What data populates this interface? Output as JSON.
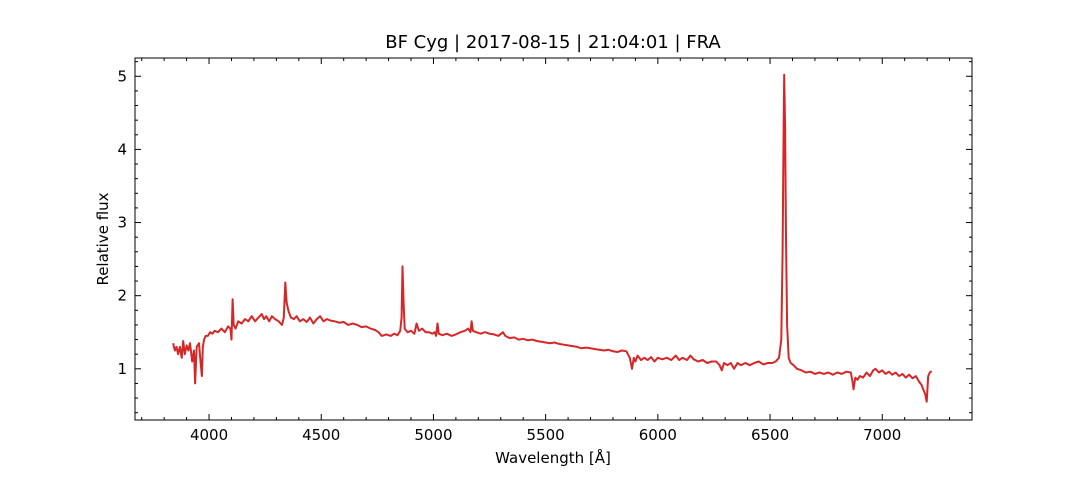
{
  "chart_data": {
    "type": "line",
    "title": "BF Cyg | 2017-08-15 | 21:04:01 | FRA",
    "xlabel": "Wavelength [Å]",
    "ylabel": "Relative flux",
    "xlim": [
      3670,
      7400
    ],
    "ylim": [
      0.3,
      5.25
    ],
    "x_ticks": [
      4000,
      4500,
      5000,
      5500,
      6000,
      6500,
      7000
    ],
    "y_ticks": [
      1,
      2,
      3,
      4,
      5
    ],
    "x_tick_labels": [
      "4000",
      "4500",
      "5000",
      "5500",
      "6000",
      "6500",
      "7000"
    ],
    "y_tick_labels": [
      "1",
      "2",
      "3",
      "4",
      "5"
    ],
    "grid": false,
    "legend": "none",
    "series": [
      {
        "color": "#d62728",
        "points": [
          [
            3840,
            1.35
          ],
          [
            3848,
            1.25
          ],
          [
            3855,
            1.3
          ],
          [
            3862,
            1.2
          ],
          [
            3870,
            1.3
          ],
          [
            3878,
            1.15
          ],
          [
            3885,
            1.38
          ],
          [
            3892,
            1.2
          ],
          [
            3900,
            1.32
          ],
          [
            3908,
            1.25
          ],
          [
            3915,
            1.35
          ],
          [
            3925,
            1.1
          ],
          [
            3933,
            1.25
          ],
          [
            3938,
            0.8
          ],
          [
            3945,
            1.3
          ],
          [
            3955,
            1.35
          ],
          [
            3962,
            1.1
          ],
          [
            3968,
            0.9
          ],
          [
            3972,
            1.3
          ],
          [
            3978,
            1.4
          ],
          [
            3985,
            1.45
          ],
          [
            3995,
            1.45
          ],
          [
            4005,
            1.5
          ],
          [
            4015,
            1.48
          ],
          [
            4025,
            1.52
          ],
          [
            4040,
            1.5
          ],
          [
            4055,
            1.55
          ],
          [
            4070,
            1.5
          ],
          [
            4085,
            1.58
          ],
          [
            4095,
            1.55
          ],
          [
            4100,
            1.4
          ],
          [
            4105,
            1.95
          ],
          [
            4110,
            1.6
          ],
          [
            4118,
            1.55
          ],
          [
            4130,
            1.65
          ],
          [
            4145,
            1.62
          ],
          [
            4160,
            1.68
          ],
          [
            4175,
            1.65
          ],
          [
            4190,
            1.72
          ],
          [
            4205,
            1.65
          ],
          [
            4220,
            1.7
          ],
          [
            4235,
            1.75
          ],
          [
            4245,
            1.68
          ],
          [
            4255,
            1.72
          ],
          [
            4268,
            1.65
          ],
          [
            4280,
            1.72
          ],
          [
            4295,
            1.68
          ],
          [
            4310,
            1.65
          ],
          [
            4325,
            1.6
          ],
          [
            4333,
            1.7
          ],
          [
            4340,
            2.18
          ],
          [
            4346,
            1.9
          ],
          [
            4355,
            1.78
          ],
          [
            4365,
            1.7
          ],
          [
            4378,
            1.68
          ],
          [
            4390,
            1.72
          ],
          [
            4405,
            1.65
          ],
          [
            4420,
            1.68
          ],
          [
            4435,
            1.64
          ],
          [
            4450,
            1.7
          ],
          [
            4465,
            1.62
          ],
          [
            4480,
            1.68
          ],
          [
            4495,
            1.72
          ],
          [
            4510,
            1.65
          ],
          [
            4525,
            1.68
          ],
          [
            4540,
            1.66
          ],
          [
            4560,
            1.65
          ],
          [
            4580,
            1.63
          ],
          [
            4600,
            1.64
          ],
          [
            4620,
            1.6
          ],
          [
            4640,
            1.62
          ],
          [
            4660,
            1.6
          ],
          [
            4680,
            1.57
          ],
          [
            4700,
            1.58
          ],
          [
            4720,
            1.55
          ],
          [
            4740,
            1.53
          ],
          [
            4755,
            1.5
          ],
          [
            4770,
            1.45
          ],
          [
            4790,
            1.47
          ],
          [
            4810,
            1.45
          ],
          [
            4825,
            1.48
          ],
          [
            4840,
            1.46
          ],
          [
            4852,
            1.52
          ],
          [
            4858,
            1.7
          ],
          [
            4862,
            2.4
          ],
          [
            4867,
            1.9
          ],
          [
            4872,
            1.55
          ],
          [
            4885,
            1.5
          ],
          [
            4900,
            1.52
          ],
          [
            4915,
            1.48
          ],
          [
            4925,
            1.62
          ],
          [
            4935,
            1.52
          ],
          [
            4950,
            1.55
          ],
          [
            4965,
            1.5
          ],
          [
            4980,
            1.5
          ],
          [
            4995,
            1.48
          ],
          [
            5005,
            1.5
          ],
          [
            5012,
            1.45
          ],
          [
            5018,
            1.62
          ],
          [
            5024,
            1.48
          ],
          [
            5040,
            1.46
          ],
          [
            5060,
            1.48
          ],
          [
            5080,
            1.45
          ],
          [
            5100,
            1.47
          ],
          [
            5120,
            1.5
          ],
          [
            5140,
            1.52
          ],
          [
            5155,
            1.55
          ],
          [
            5165,
            1.5
          ],
          [
            5170,
            1.65
          ],
          [
            5176,
            1.52
          ],
          [
            5190,
            1.5
          ],
          [
            5210,
            1.48
          ],
          [
            5230,
            1.5
          ],
          [
            5250,
            1.48
          ],
          [
            5270,
            1.47
          ],
          [
            5290,
            1.45
          ],
          [
            5310,
            1.5
          ],
          [
            5320,
            1.45
          ],
          [
            5340,
            1.42
          ],
          [
            5360,
            1.43
          ],
          [
            5380,
            1.4
          ],
          [
            5400,
            1.41
          ],
          [
            5420,
            1.39
          ],
          [
            5440,
            1.4
          ],
          [
            5460,
            1.38
          ],
          [
            5480,
            1.37
          ],
          [
            5500,
            1.36
          ],
          [
            5520,
            1.35
          ],
          [
            5540,
            1.36
          ],
          [
            5560,
            1.34
          ],
          [
            5580,
            1.33
          ],
          [
            5600,
            1.32
          ],
          [
            5620,
            1.31
          ],
          [
            5640,
            1.3
          ],
          [
            5660,
            1.28
          ],
          [
            5680,
            1.29
          ],
          [
            5700,
            1.28
          ],
          [
            5720,
            1.27
          ],
          [
            5740,
            1.26
          ],
          [
            5760,
            1.25
          ],
          [
            5780,
            1.26
          ],
          [
            5800,
            1.24
          ],
          [
            5820,
            1.23
          ],
          [
            5840,
            1.25
          ],
          [
            5860,
            1.24
          ],
          [
            5875,
            1.15
          ],
          [
            5885,
            1.0
          ],
          [
            5893,
            1.15
          ],
          [
            5900,
            1.1
          ],
          [
            5910,
            1.18
          ],
          [
            5925,
            1.12
          ],
          [
            5940,
            1.15
          ],
          [
            5955,
            1.12
          ],
          [
            5970,
            1.16
          ],
          [
            5985,
            1.1
          ],
          [
            6000,
            1.15
          ],
          [
            6020,
            1.13
          ],
          [
            6040,
            1.15
          ],
          [
            6060,
            1.12
          ],
          [
            6080,
            1.18
          ],
          [
            6095,
            1.12
          ],
          [
            6110,
            1.15
          ],
          [
            6130,
            1.12
          ],
          [
            6145,
            1.18
          ],
          [
            6160,
            1.13
          ],
          [
            6180,
            1.1
          ],
          [
            6200,
            1.12
          ],
          [
            6220,
            1.08
          ],
          [
            6240,
            1.1
          ],
          [
            6260,
            1.1
          ],
          [
            6275,
            1.05
          ],
          [
            6285,
            0.98
          ],
          [
            6295,
            1.08
          ],
          [
            6310,
            1.05
          ],
          [
            6325,
            1.08
          ],
          [
            6340,
            1.0
          ],
          [
            6355,
            1.08
          ],
          [
            6370,
            1.05
          ],
          [
            6390,
            1.08
          ],
          [
            6410,
            1.05
          ],
          [
            6430,
            1.08
          ],
          [
            6450,
            1.1
          ],
          [
            6470,
            1.06
          ],
          [
            6490,
            1.08
          ],
          [
            6510,
            1.08
          ],
          [
            6525,
            1.1
          ],
          [
            6540,
            1.15
          ],
          [
            6550,
            1.4
          ],
          [
            6556,
            2.6
          ],
          [
            6560,
            4.1
          ],
          [
            6563,
            5.02
          ],
          [
            6567,
            4.3
          ],
          [
            6571,
            2.8
          ],
          [
            6576,
            1.6
          ],
          [
            6583,
            1.15
          ],
          [
            6592,
            1.08
          ],
          [
            6605,
            1.05
          ],
          [
            6620,
            1.0
          ],
          [
            6640,
            0.98
          ],
          [
            6660,
            0.95
          ],
          [
            6680,
            0.96
          ],
          [
            6700,
            0.93
          ],
          [
            6720,
            0.95
          ],
          [
            6740,
            0.93
          ],
          [
            6760,
            0.95
          ],
          [
            6780,
            0.92
          ],
          [
            6800,
            0.95
          ],
          [
            6820,
            0.93
          ],
          [
            6840,
            0.96
          ],
          [
            6860,
            0.95
          ],
          [
            6868,
            0.82
          ],
          [
            6872,
            0.72
          ],
          [
            6880,
            0.88
          ],
          [
            6890,
            0.85
          ],
          [
            6900,
            0.9
          ],
          [
            6915,
            0.88
          ],
          [
            6930,
            0.95
          ],
          [
            6945,
            0.9
          ],
          [
            6960,
            0.98
          ],
          [
            6970,
            1.0
          ],
          [
            6985,
            0.95
          ],
          [
            7000,
            0.98
          ],
          [
            7015,
            0.93
          ],
          [
            7030,
            0.96
          ],
          [
            7045,
            0.92
          ],
          [
            7060,
            0.95
          ],
          [
            7075,
            0.9
          ],
          [
            7090,
            0.93
          ],
          [
            7105,
            0.88
          ],
          [
            7120,
            0.92
          ],
          [
            7135,
            0.87
          ],
          [
            7150,
            0.9
          ],
          [
            7165,
            0.82
          ],
          [
            7175,
            0.78
          ],
          [
            7185,
            0.7
          ],
          [
            7192,
            0.65
          ],
          [
            7198,
            0.55
          ],
          [
            7205,
            0.9
          ],
          [
            7212,
            0.95
          ],
          [
            7220,
            0.97
          ]
        ]
      }
    ]
  }
}
